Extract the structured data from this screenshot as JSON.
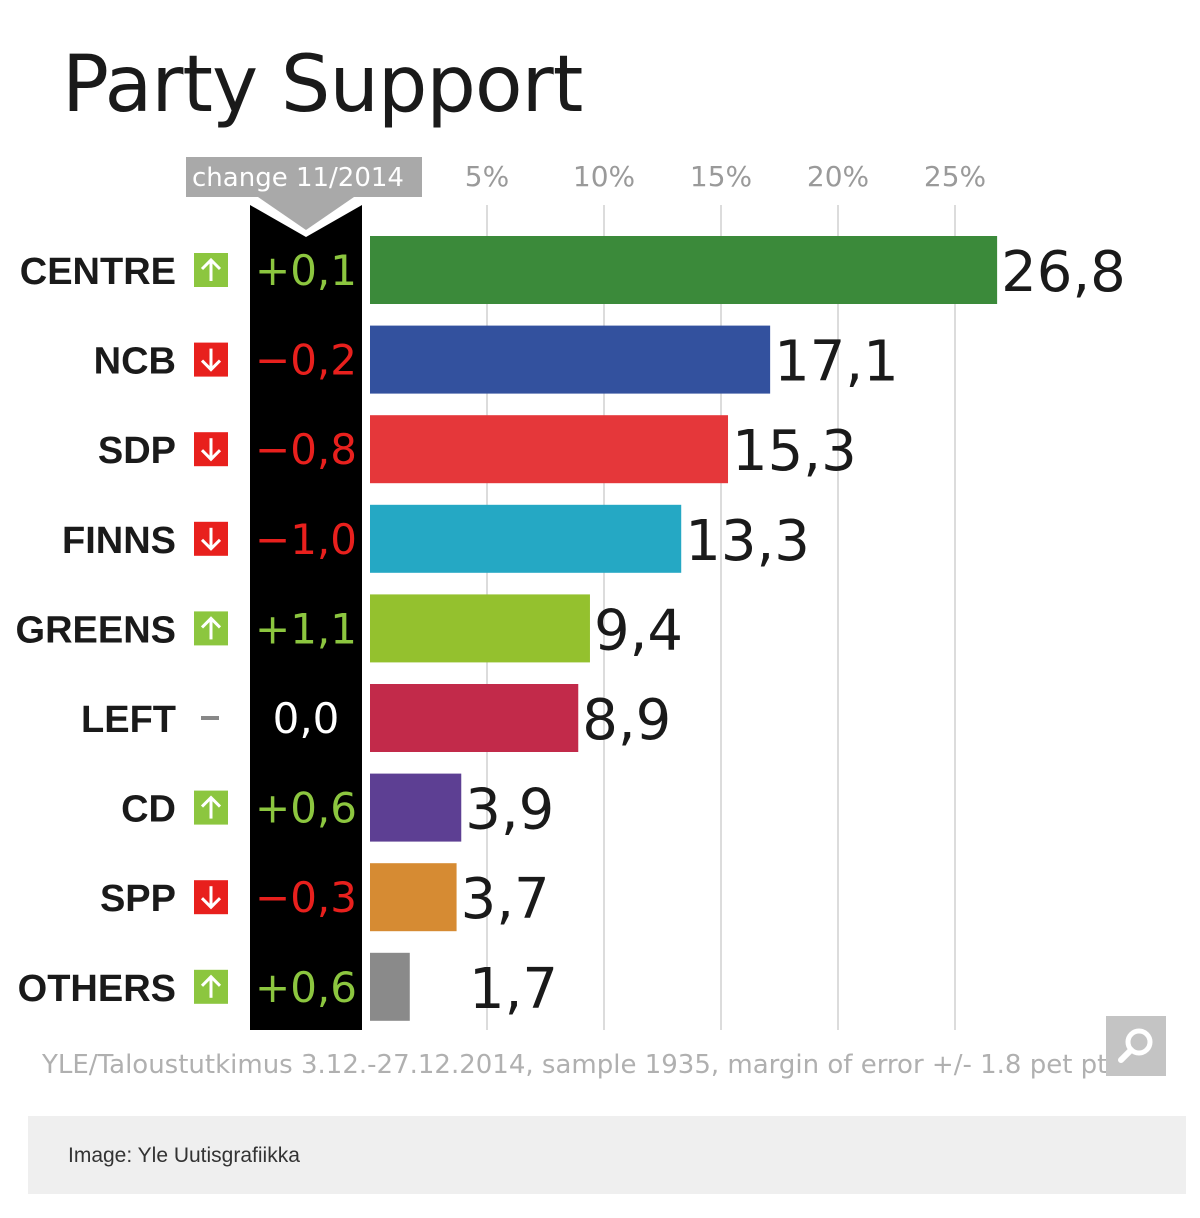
{
  "chart_data": {
    "type": "bar",
    "orientation": "horizontal",
    "title": "Party Support",
    "change_header": "change 11/2014",
    "x_ticks": [
      "5%",
      "10%",
      "15%",
      "20%",
      "25%"
    ],
    "x_tick_values": [
      5,
      10,
      15,
      20,
      25
    ],
    "xlim": [
      0,
      27
    ],
    "grid": true,
    "categories": [
      "CENTRE",
      "NCB",
      "SDP",
      "FINNS",
      "GREENS",
      "LEFT",
      "CD",
      "SPP",
      "OTHERS"
    ],
    "values": [
      26.8,
      17.1,
      15.3,
      13.3,
      9.4,
      8.9,
      3.9,
      3.7,
      1.7
    ],
    "value_labels": [
      "26,8",
      "17,1",
      "15,3",
      "13,3",
      "9,4",
      "8,9",
      "3,9",
      "3,7",
      "1,7"
    ],
    "changes": [
      0.1,
      -0.2,
      -0.8,
      -1.0,
      1.1,
      0.0,
      0.6,
      -0.3,
      0.6
    ],
    "change_labels": [
      "+0,1",
      "−0,2",
      "−0,8",
      "−1,0",
      "+1,1",
      "0,0",
      "+0,6",
      "−0,3",
      "+0,6"
    ],
    "bar_colors": [
      "#3b8a3a",
      "#33519e",
      "#e5373a",
      "#25a8c4",
      "#94c12e",
      "#c22a4a",
      "#5d3f93",
      "#d68b33",
      "#8a8a8a"
    ],
    "change_colors": {
      "up": "#8cc63f",
      "down": "#e8201d",
      "none": "#ffffff"
    }
  },
  "source": "YLE/Taloustutkimus 3.12.-27.12.2014, sample 1935, margin of error +/- 1.8 pet pts.",
  "caption": "Image: Yle Uutisgrafiikka",
  "zoom_icon": "magnifier-icon"
}
